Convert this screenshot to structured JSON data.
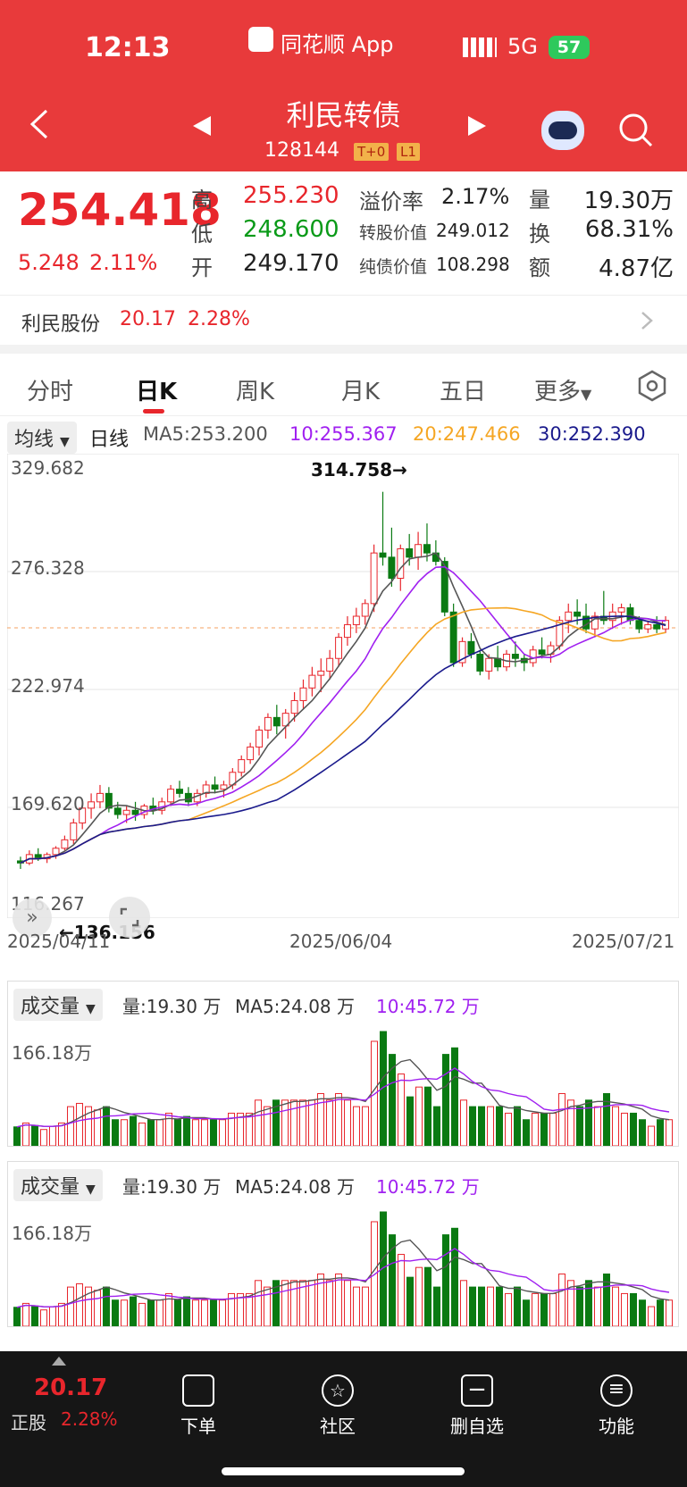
{
  "status_bar": {
    "time": "12:13",
    "app": "同花顺 App",
    "network": "5G",
    "battery": "57"
  },
  "header": {
    "title": "利民转债",
    "code": "128144",
    "badge1": "T+0",
    "badge2": "L1"
  },
  "quote": {
    "price": "254.418",
    "change": "5.248",
    "change_pct": "2.11%",
    "high_label": "高",
    "high": "255.230",
    "low_label": "低",
    "low": "248.600",
    "open_label": "开",
    "open": "249.170",
    "premium_label": "溢价率",
    "premium": "2.17%",
    "conv_label": "转股价值",
    "conv": "249.012",
    "bond_label": "纯债价值",
    "bond": "108.298",
    "vol_label": "量",
    "vol": "19.30万",
    "turn_label": "换",
    "turn": "68.31%",
    "amt_label": "额",
    "amt": "4.87亿"
  },
  "underlying": {
    "name": "利民股份",
    "price": "20.17",
    "pct": "2.28%"
  },
  "tabs": [
    "分时",
    "日K",
    "周K",
    "月K",
    "五日",
    "更多"
  ],
  "active_tab": 1,
  "ma": {
    "selector": "均线",
    "period": "日线",
    "ma5": "MA5:253.200",
    "ma10": "10:255.367",
    "ma20": "20:247.466",
    "ma30": "30:252.390"
  },
  "colors": {
    "up": "#e8262c",
    "down": "#0a7a12",
    "ma5": "#555555",
    "ma10": "#a020f0",
    "ma20": "#f5a623",
    "ma30": "#1a1a8c"
  },
  "y_axis": [
    "329.682",
    "276.328",
    "222.974",
    "169.620",
    "116.267"
  ],
  "max_label": "314.758→",
  "min_label": "←136.156",
  "dates": [
    "2025/04/11",
    "2025/06/04",
    "2025/07/21"
  ],
  "vol_panel": {
    "selector": "成交量",
    "vol": "量:19.30 万",
    "ma5": "MA5:24.08 万",
    "ma10": "10:45.72 万",
    "ylabel": "166.18万"
  },
  "vol_panel2": {
    "selector": "成交量",
    "vol": "量:19.30 万",
    "ma5": "MA5:24.08 万",
    "ma10": "10:45.72 万",
    "ylabel": "166.18万"
  },
  "bottom_bar": {
    "price": "20.17",
    "label": "正股",
    "pct": "2.28%",
    "items": [
      "下单",
      "社区",
      "删自选",
      "功能"
    ]
  },
  "chart_data": {
    "type": "candlestick",
    "ylim": [
      116.267,
      329.682
    ],
    "ohlc": [
      [
        140,
        142,
        136.2,
        139
      ],
      [
        139,
        145,
        138,
        143
      ],
      [
        143,
        146,
        140,
        141
      ],
      [
        141,
        144,
        139,
        143
      ],
      [
        143,
        147,
        141,
        146
      ],
      [
        146,
        152,
        145,
        150
      ],
      [
        150,
        160,
        148,
        158
      ],
      [
        158,
        168,
        155,
        165
      ],
      [
        165,
        172,
        160,
        168
      ],
      [
        168,
        176,
        165,
        172
      ],
      [
        172,
        175,
        163,
        165
      ],
      [
        165,
        168,
        160,
        162
      ],
      [
        162,
        166,
        158,
        164
      ],
      [
        164,
        168,
        159,
        162
      ],
      [
        162,
        167,
        160,
        166
      ],
      [
        166,
        170,
        162,
        164
      ],
      [
        164,
        170,
        162,
        168
      ],
      [
        168,
        176,
        166,
        174
      ],
      [
        174,
        178,
        170,
        172
      ],
      [
        172,
        175,
        166,
        168
      ],
      [
        168,
        174,
        166,
        172
      ],
      [
        172,
        178,
        170,
        176
      ],
      [
        176,
        180,
        172,
        174
      ],
      [
        174,
        178,
        170,
        176
      ],
      [
        176,
        184,
        174,
        182
      ],
      [
        182,
        190,
        180,
        188
      ],
      [
        188,
        196,
        186,
        194
      ],
      [
        194,
        204,
        190,
        202
      ],
      [
        202,
        210,
        198,
        208
      ],
      [
        208,
        214,
        200,
        204
      ],
      [
        204,
        212,
        198,
        210
      ],
      [
        210,
        220,
        206,
        216
      ],
      [
        216,
        226,
        212,
        222
      ],
      [
        222,
        232,
        218,
        228
      ],
      [
        228,
        236,
        220,
        230
      ],
      [
        230,
        240,
        226,
        236
      ],
      [
        236,
        248,
        232,
        246
      ],
      [
        246,
        256,
        242,
        252
      ],
      [
        252,
        260,
        248,
        256
      ],
      [
        256,
        264,
        252,
        262
      ],
      [
        262,
        290,
        258,
        286
      ],
      [
        286,
        315,
        280,
        284
      ],
      [
        284,
        298,
        270,
        274
      ],
      [
        274,
        290,
        268,
        288
      ],
      [
        288,
        295,
        280,
        284
      ],
      [
        284,
        296,
        278,
        290
      ],
      [
        290,
        300,
        282,
        286
      ],
      [
        286,
        292,
        280,
        282
      ],
      [
        282,
        284,
        256,
        258
      ],
      [
        258,
        262,
        232,
        234
      ],
      [
        234,
        246,
        232,
        244
      ],
      [
        244,
        248,
        236,
        238
      ],
      [
        238,
        240,
        228,
        230
      ],
      [
        230,
        238,
        226,
        236
      ],
      [
        236,
        242,
        230,
        232
      ],
      [
        232,
        240,
        230,
        238
      ],
      [
        238,
        244,
        232,
        236
      ],
      [
        236,
        238,
        230,
        234
      ],
      [
        234,
        242,
        232,
        240
      ],
      [
        240,
        246,
        236,
        238
      ],
      [
        238,
        244,
        234,
        242
      ],
      [
        242,
        256,
        240,
        254
      ],
      [
        254,
        262,
        248,
        258
      ],
      [
        258,
        264,
        252,
        256
      ],
      [
        256,
        262,
        248,
        250
      ],
      [
        250,
        258,
        246,
        256
      ],
      [
        256,
        268,
        252,
        254
      ],
      [
        254,
        262,
        250,
        258
      ],
      [
        258,
        262,
        252,
        260
      ],
      [
        260,
        262,
        252,
        254
      ],
      [
        254,
        256,
        248,
        250
      ],
      [
        250,
        254,
        248,
        252
      ],
      [
        252,
        256,
        248,
        250
      ],
      [
        250,
        256,
        248,
        254
      ]
    ]
  }
}
